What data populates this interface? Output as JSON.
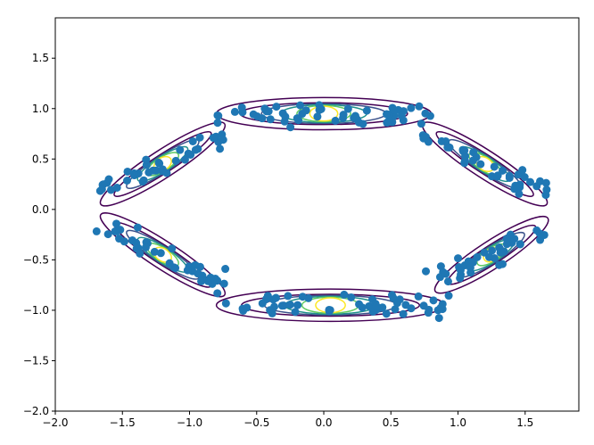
{
  "chart_data": {
    "type": "scatter",
    "title": "",
    "xlabel": "",
    "ylabel": "",
    "xlim": [
      -2.0,
      1.9
    ],
    "ylim": [
      -2.0,
      1.9
    ],
    "x_ticks": [
      -2.0,
      -1.5,
      -1.0,
      -0.5,
      0.0,
      0.5,
      1.0,
      1.5
    ],
    "x_tick_labels": [
      "−2.0",
      "−1.5",
      "−1.0",
      "−0.5",
      "0.0",
      "0.5",
      "1.0",
      "1.5"
    ],
    "y_ticks": [
      -2.0,
      -1.5,
      -1.0,
      -0.5,
      0.0,
      0.5,
      1.0,
      1.5
    ],
    "y_tick_labels": [
      "−2.0",
      "−1.5",
      "−1.0",
      "−0.5",
      "0.0",
      "0.5",
      "1.0",
      "1.5"
    ],
    "grid": false,
    "colors": {
      "points": "#1f77b4",
      "levels": [
        "#440154",
        "#3b528b",
        "#21918c",
        "#5ec962",
        "#fde725"
      ]
    },
    "clusters": [
      {
        "name": "top",
        "center": [
          0.0,
          0.95
        ],
        "angle_deg": 0,
        "length": 1.6,
        "width": 0.2,
        "points": 55
      },
      {
        "name": "bottom",
        "center": [
          0.05,
          -0.95
        ],
        "angle_deg": 0,
        "length": 1.7,
        "width": 0.2,
        "points": 55
      },
      {
        "name": "upper-left",
        "center": [
          -1.2,
          0.45
        ],
        "angle_deg": 33,
        "length": 1.1,
        "width": 0.17,
        "points": 40
      },
      {
        "name": "upper-right",
        "center": [
          1.2,
          0.45
        ],
        "angle_deg": -33,
        "length": 1.1,
        "width": 0.17,
        "points": 40
      },
      {
        "name": "lower-left",
        "center": [
          -1.2,
          -0.45
        ],
        "angle_deg": -33,
        "length": 1.1,
        "width": 0.17,
        "points": 40
      },
      {
        "name": "lower-right",
        "center": [
          1.25,
          -0.45
        ],
        "angle_deg": 33,
        "length": 1.0,
        "width": 0.17,
        "points": 40
      }
    ],
    "contour_levels": [
      1.0,
      0.78,
      0.58,
      0.4,
      0.25,
      0.13
    ]
  }
}
